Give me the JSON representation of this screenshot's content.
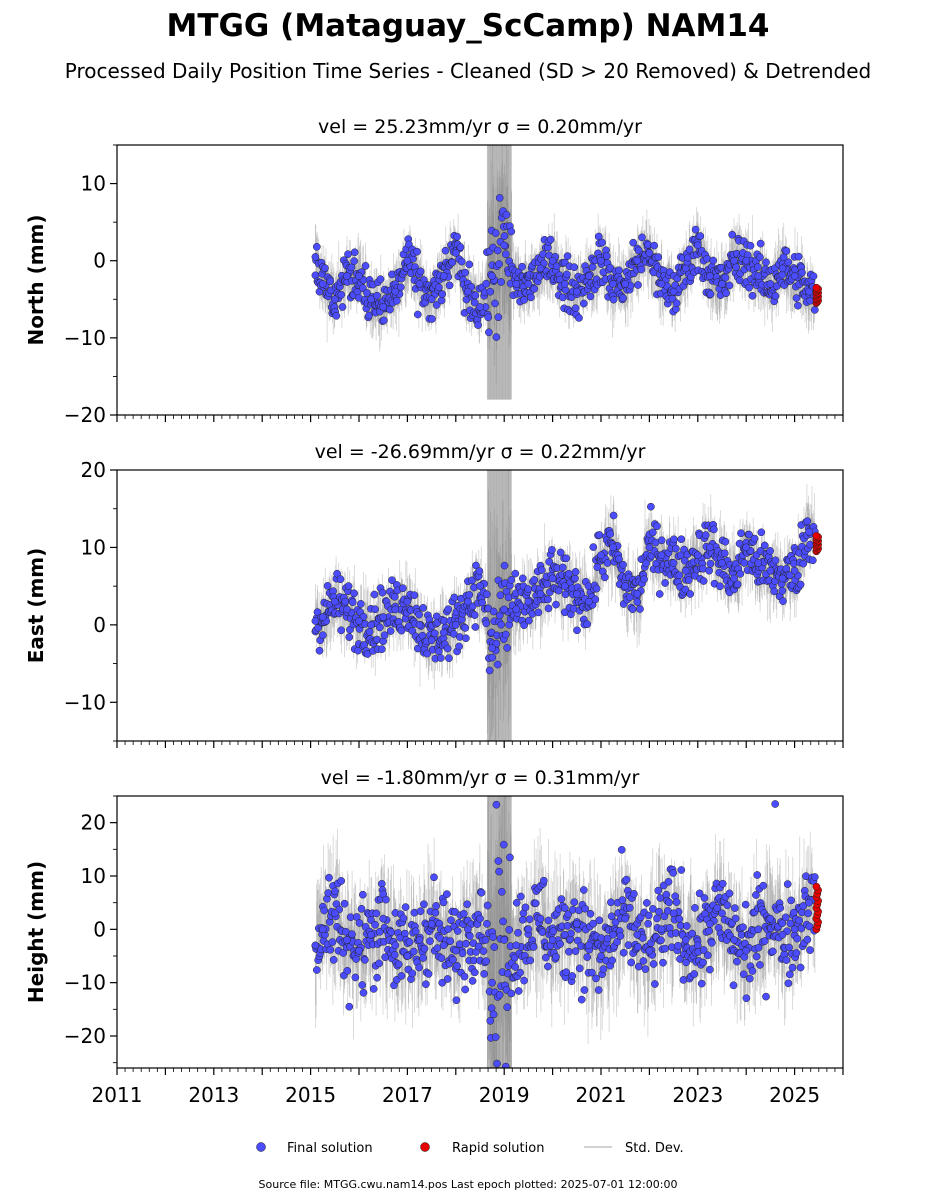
{
  "title": "MTGG (Mataguay_ScCamp) NAM14",
  "subtitle": "Processed Daily Position Time Series - Cleaned (SD > 20 Removed) & Detrended",
  "legend": {
    "final_label": "Final solution",
    "rapid_label": "Rapid solution",
    "std_label": "Std. Dev."
  },
  "footer": "Source file: MTGG.cwu.nam14.pos  Last epoch plotted: 2025-07-01 12:00:00",
  "colors": {
    "final": "#4c4cff",
    "rapid": "#e60000",
    "std": "#808080"
  },
  "chart_data": [
    {
      "type": "scatter",
      "panel": "north",
      "title": "vel = 25.23mm/yr   σ = 0.20mm/yr",
      "ylabel": "North (mm)",
      "xlim": [
        2011,
        2026
      ],
      "ylim": [
        -20,
        15
      ],
      "yticks": [
        -20,
        -10,
        0,
        10
      ],
      "ytick_labels": [
        "−20",
        "−10",
        "0",
        "10"
      ],
      "xticks": [
        2011,
        2013,
        2015,
        2017,
        2019,
        2021,
        2023,
        2025
      ],
      "xtick_labels": [],
      "grid": false,
      "series": [
        {
          "name": "Final solution",
          "x": [
            2015.1,
            2015.25,
            2015.5,
            2015.75,
            2016.0,
            2016.25,
            2016.5,
            2016.75,
            2017.0,
            2017.25,
            2017.5,
            2017.75,
            2018.0,
            2018.25,
            2018.5,
            2018.75,
            2019.0,
            2019.25,
            2019.5,
            2019.75,
            2020.0,
            2020.25,
            2020.5,
            2020.75,
            2021.0,
            2021.25,
            2021.5,
            2021.75,
            2022.0,
            2022.25,
            2022.5,
            2022.75,
            2023.0,
            2023.25,
            2023.5,
            2023.75,
            2024.0,
            2024.25,
            2024.5,
            2024.75,
            2025.0,
            2025.3
          ],
          "y": [
            0.5,
            -3,
            -5,
            -2,
            -2,
            -5,
            -6,
            -4,
            0,
            -3,
            -5,
            -2,
            1,
            -4,
            -6,
            -2,
            2,
            -3,
            -3,
            -1,
            0,
            -3,
            -4,
            -2,
            0,
            -3,
            -3,
            0,
            1,
            -3,
            -4,
            -1,
            2,
            -2,
            -3,
            0,
            0,
            -2,
            -3,
            -1,
            -2,
            -4
          ]
        },
        {
          "name": "Rapid solution",
          "x": [
            2025.45,
            2025.47,
            2025.49
          ],
          "y": [
            -3.5,
            -4.5,
            -5.5
          ]
        }
      ],
      "std_dev": [
        {
          "x": [
            2018.65,
            2019.15
          ],
          "range": [
            -18,
            15
          ]
        }
      ]
    },
    {
      "type": "scatter",
      "panel": "east",
      "title": "vel = -26.69mm/yr   σ = 0.22mm/yr",
      "ylabel": "East (mm)",
      "xlim": [
        2011,
        2026
      ],
      "ylim": [
        -15,
        20
      ],
      "yticks": [
        -10,
        0,
        10,
        20
      ],
      "ytick_labels": [
        "−10",
        "0",
        "10",
        "20"
      ],
      "xticks": [
        2011,
        2013,
        2015,
        2017,
        2019,
        2021,
        2023,
        2025
      ],
      "xtick_labels": [],
      "grid": false,
      "series": [
        {
          "name": "Final solution",
          "x": [
            2015.1,
            2015.25,
            2015.5,
            2015.75,
            2016.0,
            2016.25,
            2016.5,
            2016.75,
            2017.0,
            2017.25,
            2017.5,
            2017.75,
            2018.0,
            2018.25,
            2018.5,
            2018.75,
            2019.0,
            2019.25,
            2019.5,
            2019.75,
            2020.0,
            2020.25,
            2020.5,
            2020.75,
            2021.0,
            2021.25,
            2021.5,
            2021.75,
            2022.0,
            2022.25,
            2022.5,
            2022.75,
            2023.0,
            2023.25,
            2023.5,
            2023.75,
            2024.0,
            2024.25,
            2024.5,
            2024.75,
            2025.0,
            2025.3
          ],
          "y": [
            0.5,
            1,
            3,
            2,
            0.5,
            0,
            1,
            2,
            3,
            0,
            -2,
            -1,
            0,
            3,
            5,
            -3,
            2,
            2,
            3,
            4,
            6,
            5,
            4,
            3,
            9,
            10,
            5,
            4,
            10,
            9,
            8,
            7,
            9,
            10,
            8,
            6,
            10,
            8,
            7,
            6,
            7,
            12
          ]
        },
        {
          "name": "Rapid solution",
          "x": [
            2025.45,
            2025.47,
            2025.49
          ],
          "y": [
            11.5,
            10.5,
            9.5
          ]
        }
      ],
      "std_dev": [
        {
          "x": [
            2018.65,
            2019.15
          ],
          "range": [
            -15,
            20
          ]
        }
      ]
    },
    {
      "type": "scatter",
      "panel": "height",
      "title": "vel = -1.80mm/yr   σ = 0.31mm/yr",
      "ylabel": "Height (mm)",
      "xlim": [
        2011,
        2026
      ],
      "ylim": [
        -26,
        25
      ],
      "yticks": [
        -20,
        -10,
        0,
        10,
        20
      ],
      "ytick_labels": [
        "−20",
        "−10",
        "0",
        "10",
        "20"
      ],
      "xticks": [
        2011,
        2013,
        2015,
        2017,
        2019,
        2021,
        2023,
        2025
      ],
      "xtick_labels": [
        "2011",
        "2013",
        "2015",
        "2017",
        "2019",
        "2021",
        "2023",
        "2025"
      ],
      "grid": false,
      "series": [
        {
          "name": "Final solution",
          "x": [
            2015.1,
            2015.25,
            2015.5,
            2015.75,
            2016.0,
            2016.25,
            2016.5,
            2016.75,
            2017.0,
            2017.25,
            2017.5,
            2017.75,
            2018.0,
            2018.25,
            2018.5,
            2018.75,
            2019.0,
            2019.25,
            2019.5,
            2019.75,
            2020.0,
            2020.25,
            2020.5,
            2020.75,
            2021.0,
            2021.25,
            2021.5,
            2021.75,
            2022.0,
            2022.25,
            2022.5,
            2022.75,
            2023.0,
            2023.25,
            2023.5,
            2023.75,
            2024.0,
            2024.25,
            2024.5,
            2024.75,
            2025.0,
            2025.3,
            2024.6
          ],
          "y": [
            -3,
            0,
            3,
            -2,
            -4,
            -1,
            2,
            -3,
            -5,
            -2,
            1,
            -3,
            -4,
            0,
            2,
            -10,
            -2,
            -3,
            0,
            2,
            -2,
            -1,
            1,
            -3,
            -5,
            -1,
            2,
            -1,
            -4,
            0,
            3,
            -2,
            -3,
            1,
            3,
            -2,
            -4,
            0,
            2,
            -1,
            0,
            5,
            23.5
          ]
        },
        {
          "name": "Rapid solution",
          "x": [
            2025.45,
            2025.47,
            2025.49
          ],
          "y": [
            8,
            4,
            0
          ]
        }
      ],
      "std_dev": [
        {
          "x": [
            2018.65,
            2019.15
          ],
          "range": [
            -26,
            25
          ]
        }
      ]
    }
  ]
}
